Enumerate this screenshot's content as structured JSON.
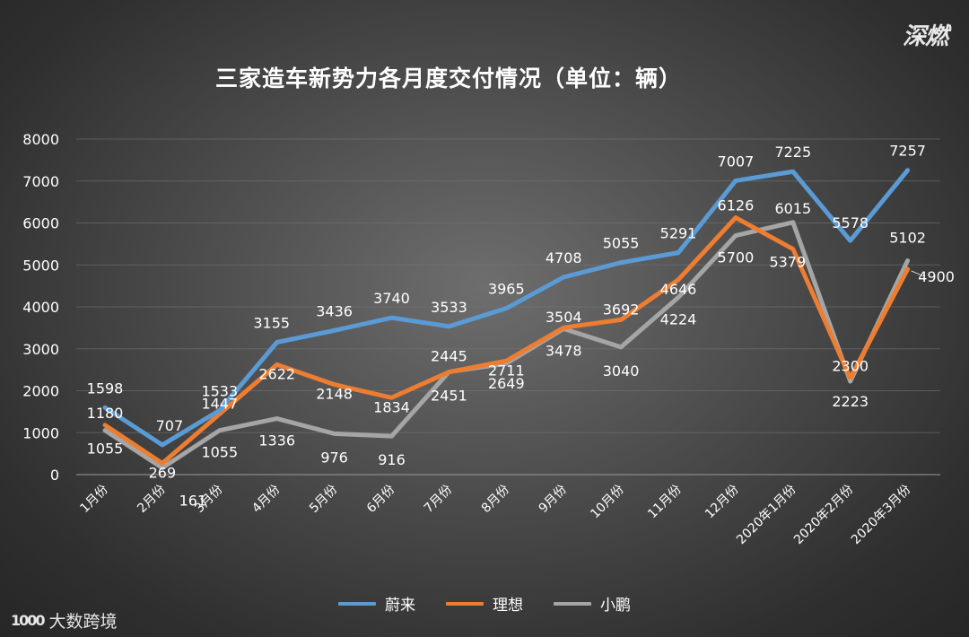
{
  "title": "三家造车新势力各月度交付情况（单位：辆）",
  "brand_top": "深燃",
  "brand_bottom": {
    "logo": "1000",
    "name": "大数跨境"
  },
  "chart_data": {
    "type": "line",
    "title": "三家造车新势力各月度交付情况（单位：辆）",
    "categories": [
      "1月份",
      "2月份",
      "3月份",
      "4月份",
      "5月份",
      "6月份",
      "7月份",
      "8月份",
      "9月份",
      "10月份",
      "11月份",
      "12月份",
      "2020年1月份",
      "2020年2月份",
      "2020年3月份"
    ],
    "ylim": [
      0,
      8000
    ],
    "yticks": [
      0,
      1000,
      2000,
      3000,
      4000,
      5000,
      6000,
      7000,
      8000
    ],
    "grid": true,
    "legend_position": "bottom",
    "series": [
      {
        "name": "蔚来",
        "color": "#5b9bd5",
        "values": [
          1598,
          707,
          1533,
          3155,
          3436,
          3740,
          3533,
          3965,
          4708,
          5055,
          5291,
          7007,
          7225,
          5578,
          7257
        ]
      },
      {
        "name": "理想",
        "color": "#ed7d31",
        "values": [
          1180,
          269,
          1447,
          2622,
          2148,
          1834,
          2445,
          2711,
          3504,
          3692,
          4646,
          6126,
          5379,
          2300,
          4900
        ]
      },
      {
        "name": "小鹏",
        "color": "#a5a5a5",
        "values": [
          1055,
          161,
          1055,
          1336,
          976,
          916,
          2451,
          2649,
          3478,
          3040,
          4224,
          5700,
          6015,
          2223,
          5102
        ]
      }
    ]
  }
}
